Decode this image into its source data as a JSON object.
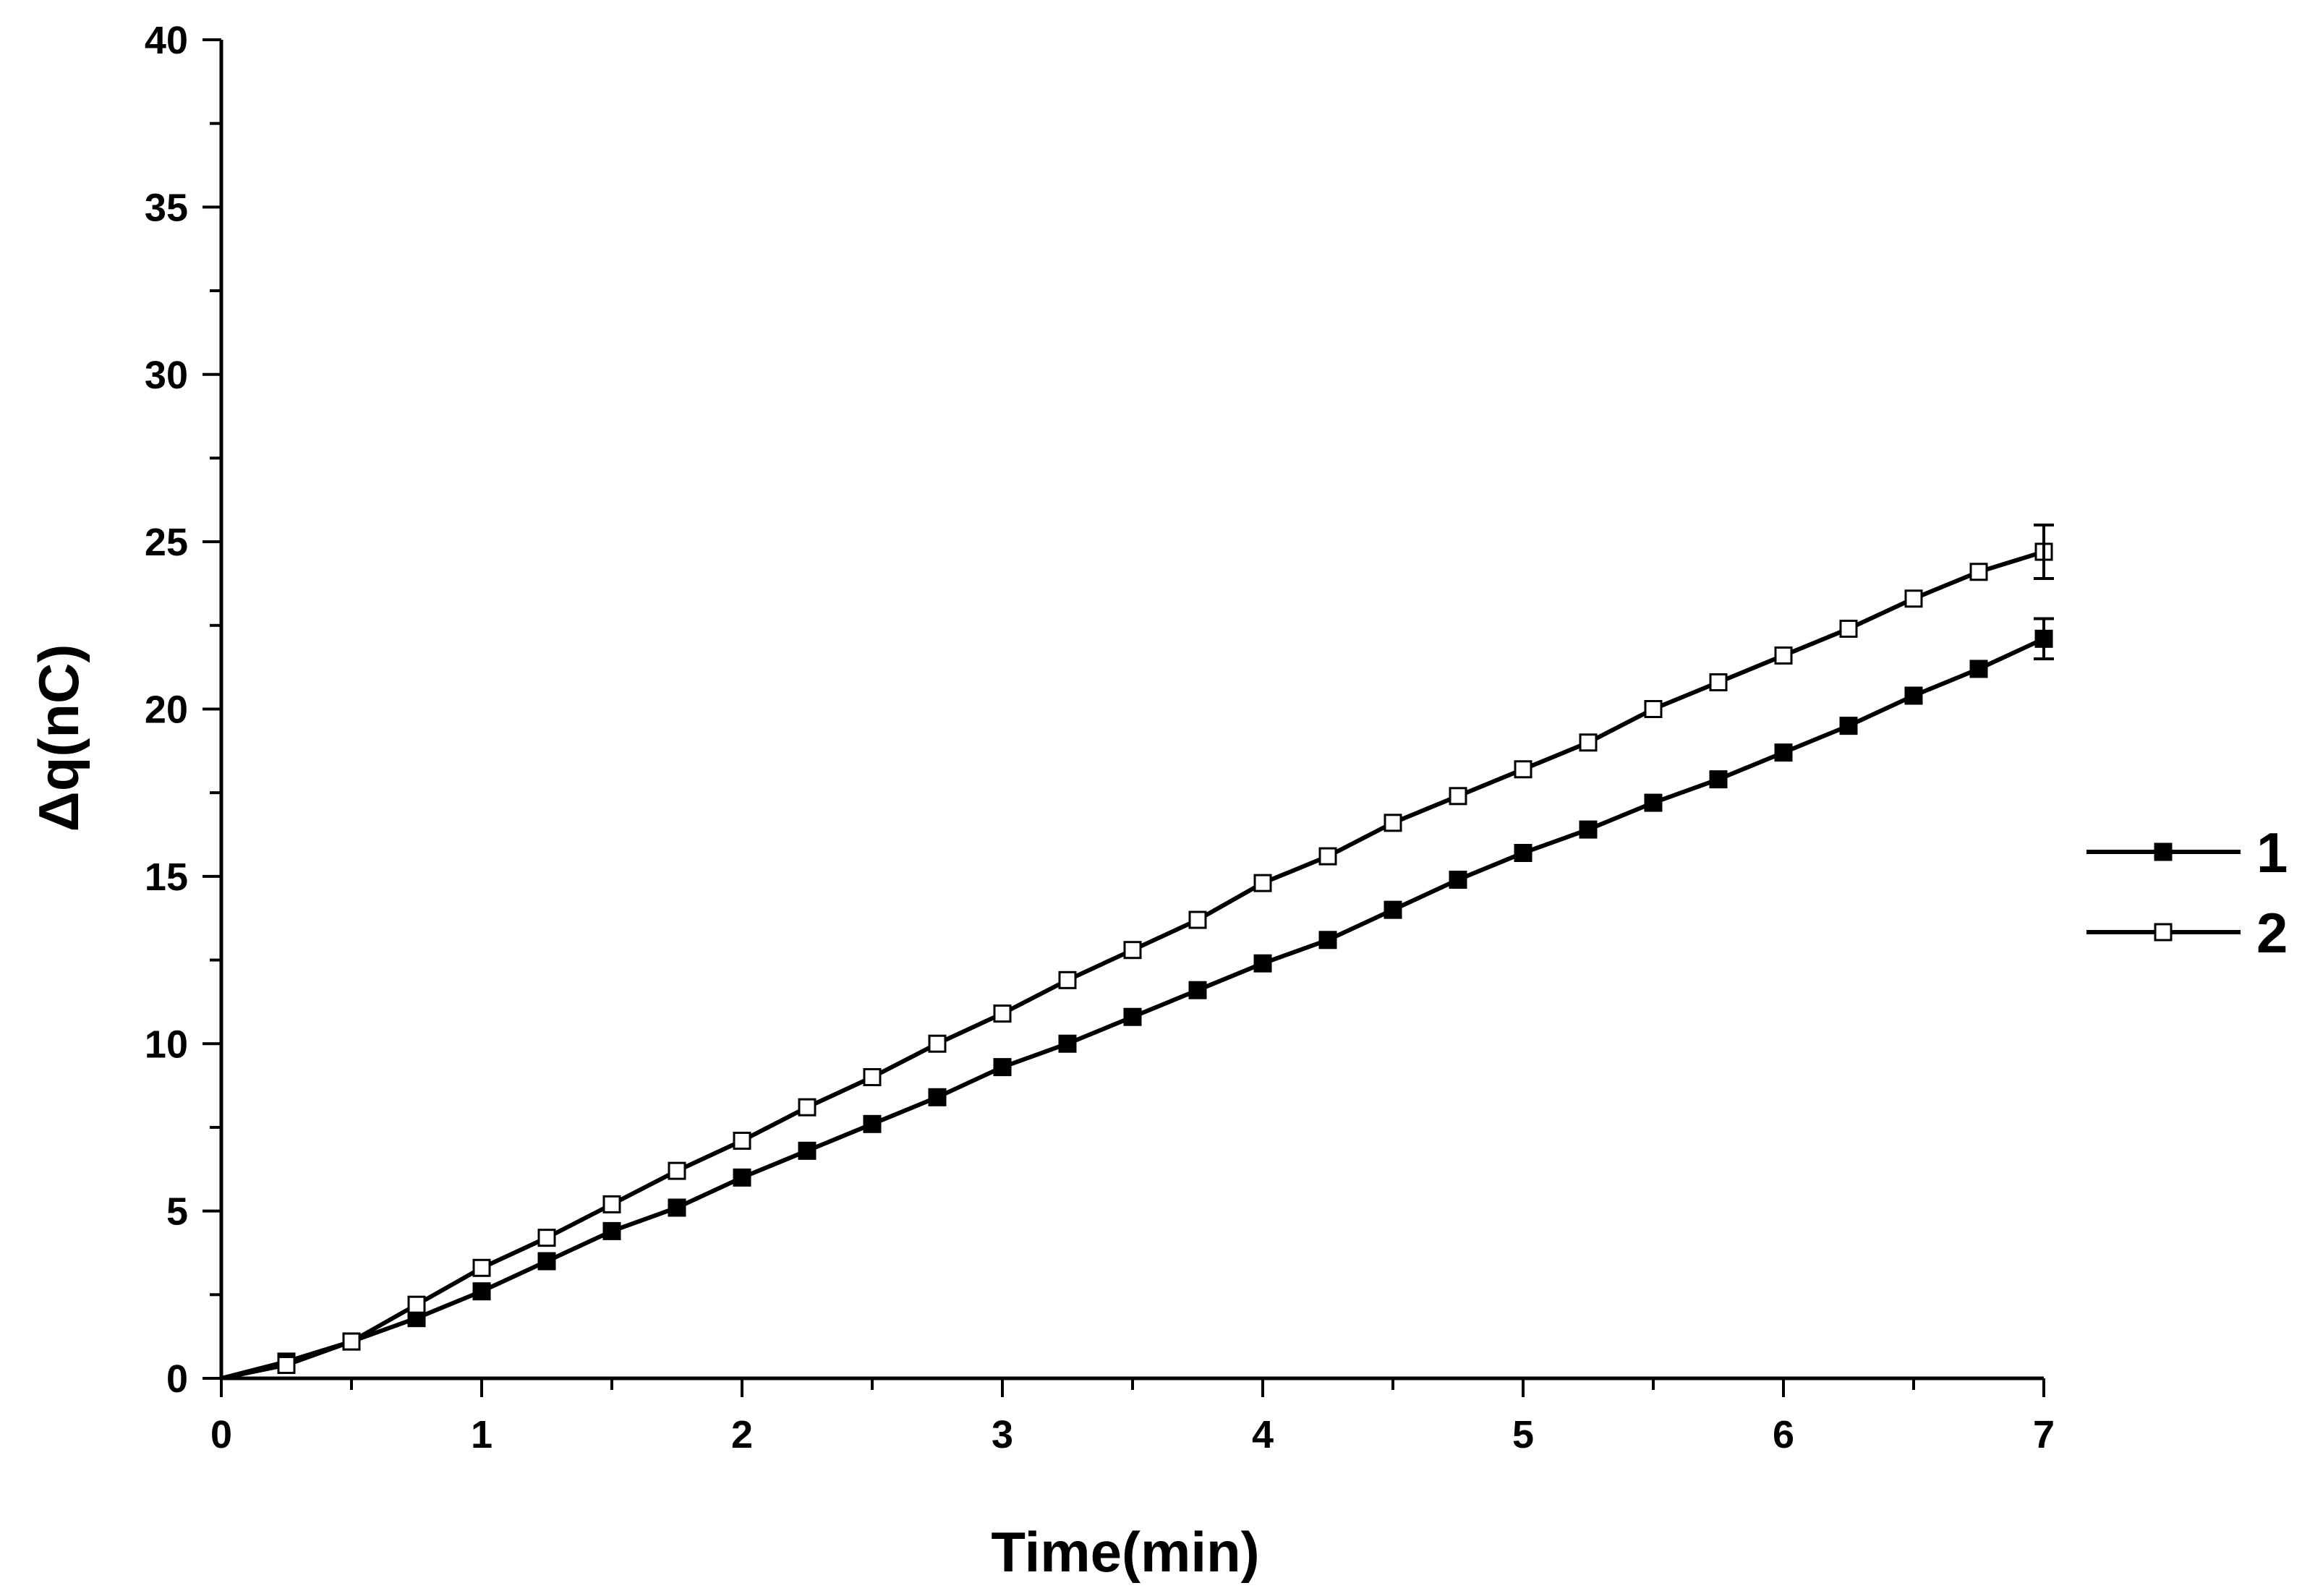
{
  "chart_data": {
    "type": "line",
    "title": "",
    "xlabel": "Time(min)",
    "ylabel": "Δq(nC)",
    "xlim": [
      0,
      7
    ],
    "ylim": [
      0,
      40
    ],
    "xticks": [
      0,
      1,
      2,
      3,
      4,
      5,
      6,
      7
    ],
    "xtick_labels": [
      "0",
      "1",
      "2",
      "3",
      "4",
      "5",
      "6",
      "7"
    ],
    "yticks": [
      0,
      5,
      10,
      15,
      20,
      25,
      30,
      35,
      40
    ],
    "ytick_labels": [
      "0",
      "5",
      "10",
      "15",
      "20",
      "25",
      "30",
      "35",
      "40"
    ],
    "grid": false,
    "legend_position": "right",
    "x": [
      0,
      0.25,
      0.5,
      0.75,
      1,
      1.25,
      1.5,
      1.75,
      2,
      2.25,
      2.5,
      2.75,
      3,
      3.25,
      3.5,
      3.75,
      4,
      4.25,
      4.5,
      4.75,
      5,
      5.25,
      5.5,
      5.75,
      6,
      6.25,
      6.5,
      6.75,
      7
    ],
    "series": [
      {
        "name": "1",
        "marker": "filled-square",
        "values": [
          0,
          0.5,
          1.1,
          1.8,
          2.6,
          3.5,
          4.4,
          5.1,
          6.0,
          6.8,
          7.6,
          8.4,
          9.3,
          10.0,
          10.8,
          11.6,
          12.4,
          13.1,
          14.0,
          14.9,
          15.7,
          16.4,
          17.2,
          17.9,
          18.7,
          19.5,
          20.4,
          21.2,
          22.1
        ],
        "error_bar_last": 0.6
      },
      {
        "name": "2",
        "marker": "open-square",
        "values": [
          0,
          0.4,
          1.1,
          2.2,
          3.3,
          4.2,
          5.2,
          6.2,
          7.1,
          8.1,
          9.0,
          10.0,
          10.9,
          11.9,
          12.8,
          13.7,
          14.8,
          15.6,
          16.6,
          17.4,
          18.2,
          19.0,
          20.0,
          20.8,
          21.6,
          22.4,
          23.3,
          24.1,
          24.7
        ],
        "error_bar_last": 0.8
      }
    ]
  }
}
